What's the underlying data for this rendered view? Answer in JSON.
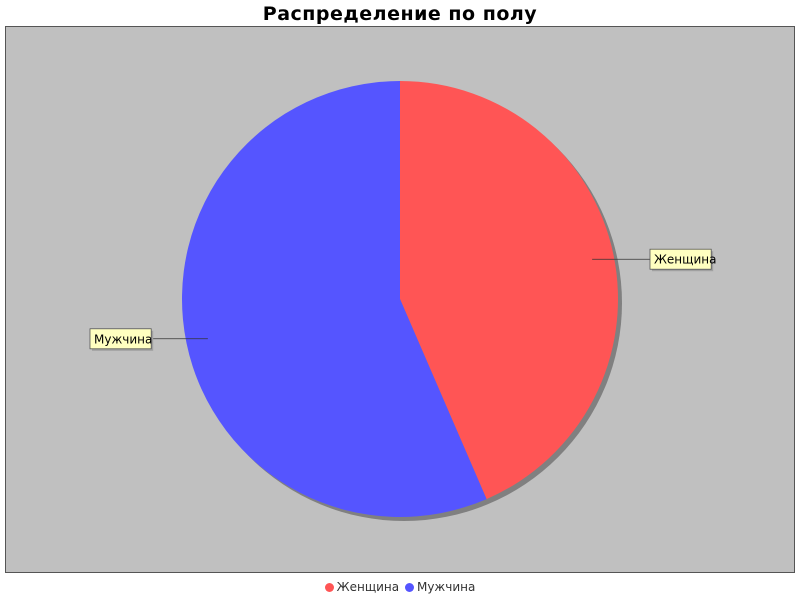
{
  "chart_data": {
    "type": "pie",
    "title": "Распределение по полу",
    "slices": [
      {
        "label": "Женщина",
        "value": 43.5,
        "color": "#ff5555"
      },
      {
        "label": "Мужчина",
        "value": 56.5,
        "color": "#5555ff"
      }
    ],
    "legend_position": "bottom-center",
    "plot_background": "#c0c0c0",
    "label_background": "#ffffc0"
  }
}
